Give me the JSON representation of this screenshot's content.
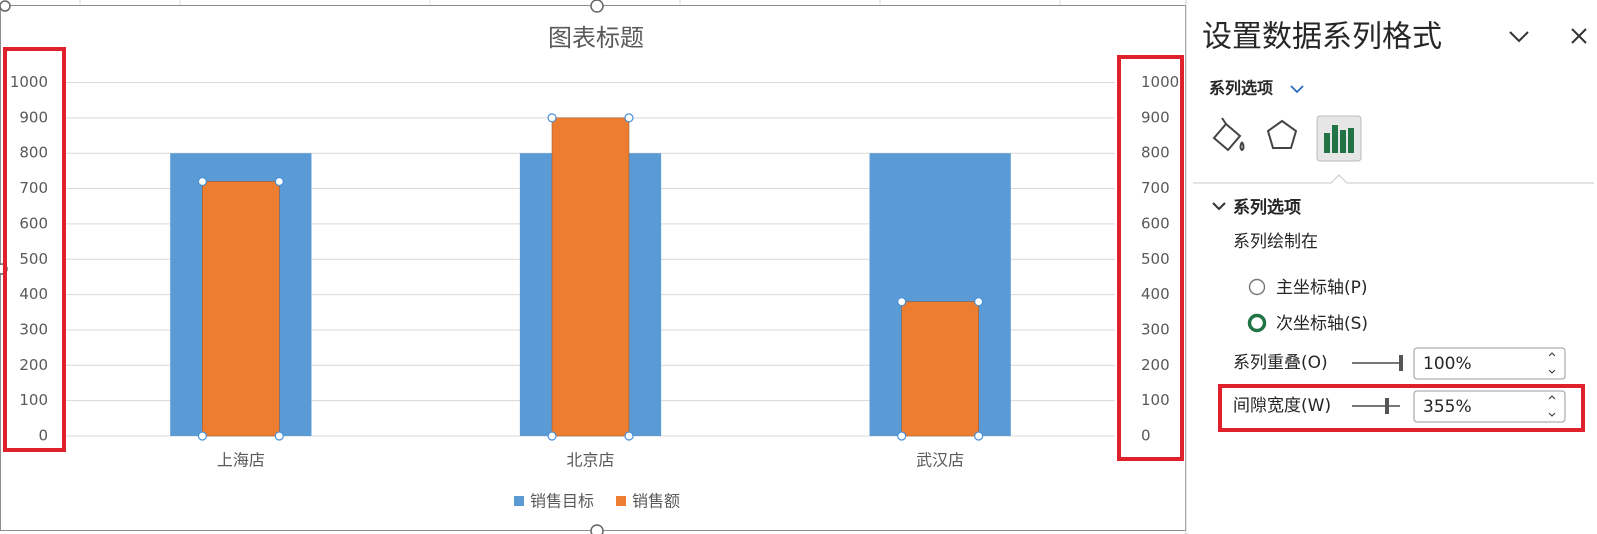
{
  "chart_data": {
    "type": "bar",
    "title": "图表标题",
    "categories": [
      "上海店",
      "北京店",
      "武汉店"
    ],
    "series": [
      {
        "name": "销售目标",
        "color": "#5b9bd5",
        "values": [
          800,
          800,
          800
        ]
      },
      {
        "name": "销售额",
        "color": "#ed7d31",
        "values": [
          720,
          900,
          380
        ],
        "axis": "y2"
      }
    ],
    "ylim": [
      0,
      1000
    ],
    "yticks": [
      0,
      100,
      200,
      300,
      400,
      500,
      600,
      700,
      800,
      900,
      1000
    ],
    "y2lim": [
      0,
      1000
    ],
    "y2ticks": [
      0,
      100,
      200,
      300,
      400,
      500,
      600,
      700,
      800,
      900,
      1000
    ],
    "grid": true,
    "legend": "bottom"
  },
  "panel": {
    "title": "设置数据系列格式",
    "tab": "系列选项",
    "section": "系列选项",
    "plot_on": "系列绘制在",
    "options": [
      {
        "label": "主坐标轴(P)",
        "selected": false
      },
      {
        "label": "次坐标轴(S)",
        "selected": true
      }
    ],
    "overlap": {
      "label": "系列重叠(O)",
      "value": "100%"
    },
    "gap": {
      "label": "间隙宽度(W)",
      "value": "355%"
    }
  }
}
